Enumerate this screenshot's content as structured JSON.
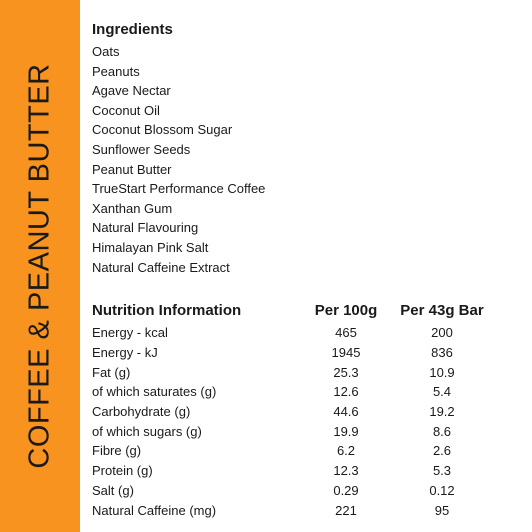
{
  "side_title": "COFFEE & PEANUT BUTTER",
  "ingredients": {
    "heading": "Ingredients",
    "items": [
      "Oats",
      "Peanuts",
      "Agave Nectar",
      "Coconut Oil",
      "Coconut Blossom Sugar",
      "Sunflower Seeds",
      "Peanut Butter",
      "TrueStart Performance Coffee",
      "Xanthan Gum",
      "Natural Flavouring",
      "Himalayan Pink Salt",
      "Natural Caffeine Extract"
    ]
  },
  "nutrition": {
    "headers": {
      "label": "Nutrition Information",
      "per100": "Per 100g",
      "per43": "Per 43g Bar"
    },
    "rows": [
      {
        "label": "Energy - kcal",
        "per100": "465",
        "per43": "200"
      },
      {
        "label": "Energy - kJ",
        "per100": "1945",
        "per43": "836"
      },
      {
        "label": "Fat (g)",
        "per100": "25.3",
        "per43": "10.9"
      },
      {
        "label": "of which saturates (g)",
        "per100": "12.6",
        "per43": "5.4"
      },
      {
        "label": "Carbohydrate (g)",
        "per100": "44.6",
        "per43": "19.2"
      },
      {
        "label": "of which sugars (g)",
        "per100": "19.9",
        "per43": "8.6"
      },
      {
        "label": "Fibre (g)",
        "per100": "6.2",
        "per43": "2.6"
      },
      {
        "label": "Protein (g)",
        "per100": "12.3",
        "per43": "5.3"
      },
      {
        "label": "Salt (g)",
        "per100": "0.29",
        "per43": "0.12"
      },
      {
        "label": "Natural Caffeine (mg)",
        "per100": "221",
        "per43": "95"
      }
    ]
  },
  "colors": {
    "band": "#f7931e",
    "text": "#1a1a1a"
  }
}
